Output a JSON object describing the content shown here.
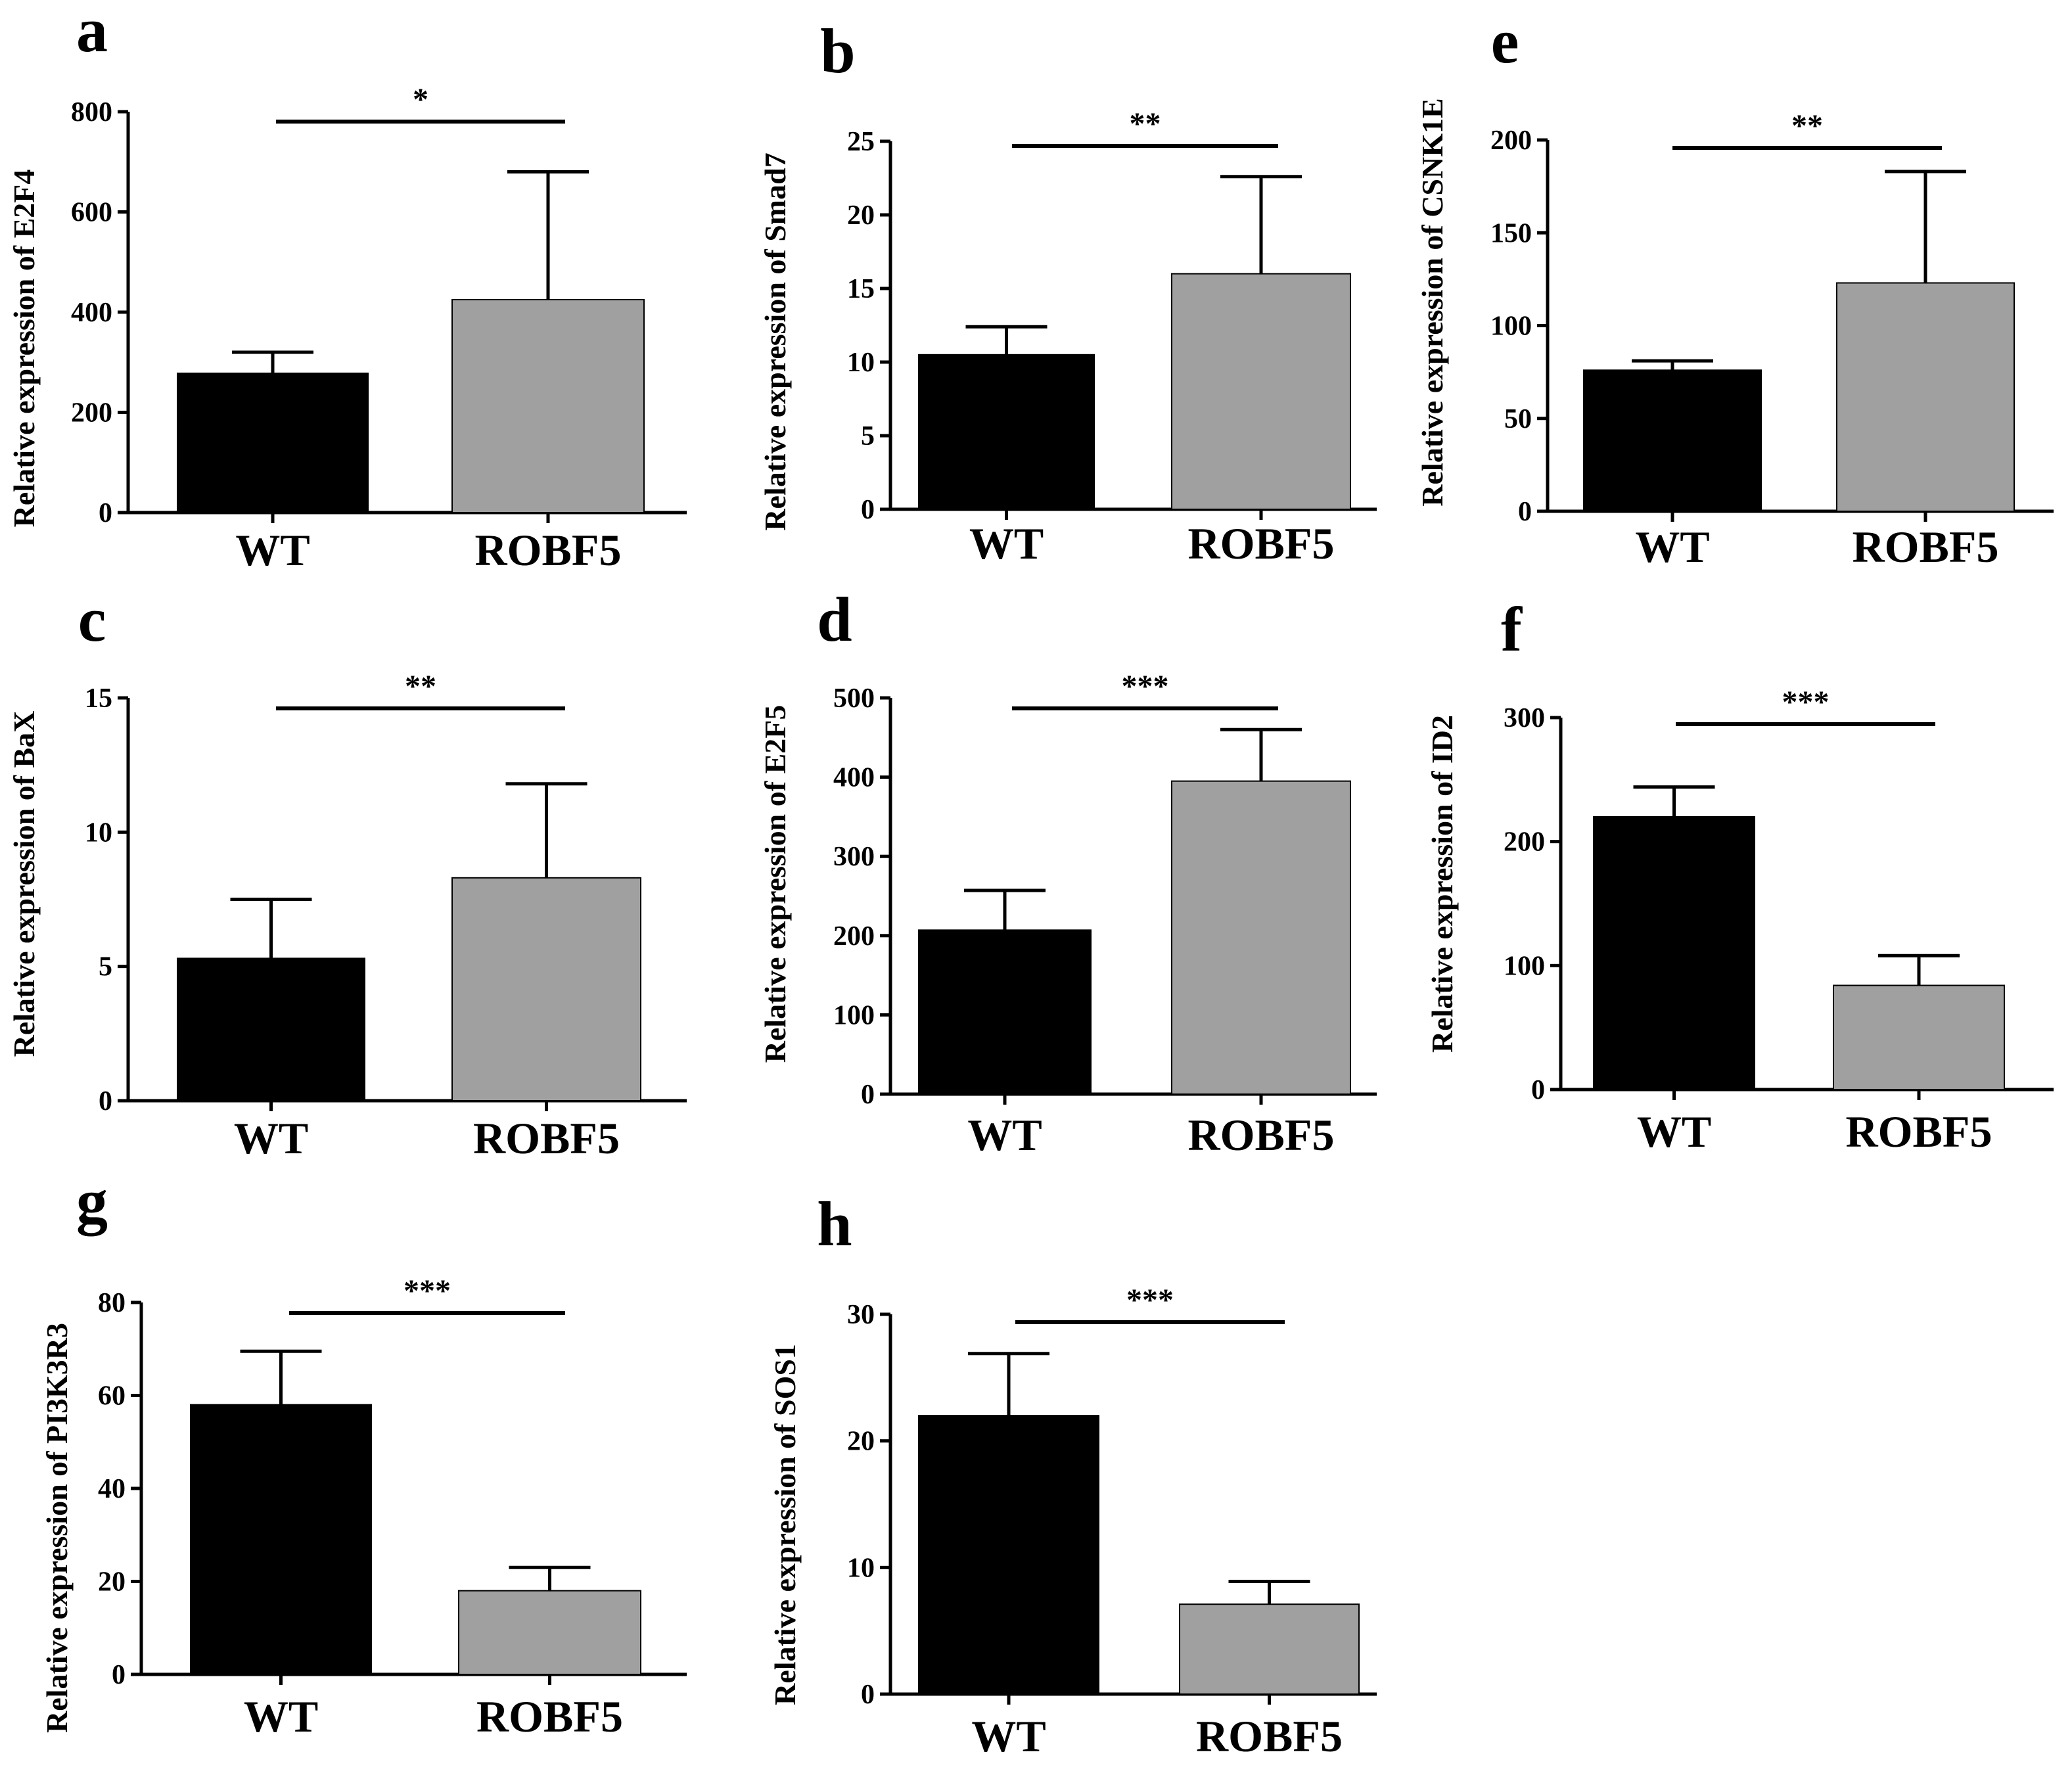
{
  "chart_data": [
    {
      "panel": "a",
      "type": "bar",
      "ylabel": "Relative expression of E2F4",
      "categories": [
        "WT",
        "ROBF5"
      ],
      "values": [
        278,
        425
      ],
      "errors": [
        42,
        255
      ],
      "colors": [
        "#000000",
        "#a0a0a0"
      ],
      "ylim": [
        0,
        800
      ],
      "yticks": [
        0,
        200,
        400,
        600,
        800
      ],
      "significance": "*"
    },
    {
      "panel": "b",
      "type": "bar",
      "ylabel": "Relative expression of Smad7",
      "categories": [
        "WT",
        "ROBF5"
      ],
      "values": [
        10.5,
        16
      ],
      "errors": [
        1.9,
        6.6
      ],
      "colors": [
        "#000000",
        "#a0a0a0"
      ],
      "ylim": [
        0,
        25
      ],
      "yticks": [
        0,
        5,
        10,
        15,
        20,
        25
      ],
      "significance": "**"
    },
    {
      "panel": "e",
      "type": "bar",
      "ylabel": "Relative expression of  CSNK1E",
      "categories": [
        "WT",
        "ROBF5"
      ],
      "values": [
        76,
        123
      ],
      "errors": [
        5,
        60
      ],
      "colors": [
        "#000000",
        "#a0a0a0"
      ],
      "ylim": [
        0,
        200
      ],
      "yticks": [
        0,
        50,
        100,
        150,
        200
      ],
      "significance": "**"
    },
    {
      "panel": "c",
      "type": "bar",
      "ylabel": "Relative expression of  BaX",
      "categories": [
        "WT",
        "ROBF5"
      ],
      "values": [
        5.3,
        8.3
      ],
      "errors": [
        2.2,
        3.5
      ],
      "colors": [
        "#000000",
        "#a0a0a0"
      ],
      "ylim": [
        0,
        15
      ],
      "yticks": [
        0,
        5,
        10,
        15
      ],
      "significance": "**"
    },
    {
      "panel": "d",
      "type": "bar",
      "ylabel": "Relative expression of E2F5",
      "categories": [
        "WT",
        "ROBF5"
      ],
      "values": [
        207,
        395
      ],
      "errors": [
        50,
        65
      ],
      "colors": [
        "#000000",
        "#a0a0a0"
      ],
      "ylim": [
        0,
        500
      ],
      "yticks": [
        0,
        100,
        200,
        300,
        400,
        500
      ],
      "significance": "***"
    },
    {
      "panel": "f",
      "type": "bar",
      "ylabel": "Relative expression of ID2",
      "categories": [
        "WT",
        "ROBF5"
      ],
      "values": [
        220,
        84
      ],
      "errors": [
        24,
        24
      ],
      "colors": [
        "#000000",
        "#a0a0a0"
      ],
      "ylim": [
        0,
        300
      ],
      "yticks": [
        0,
        100,
        200,
        300
      ],
      "significance": "***"
    },
    {
      "panel": "g",
      "type": "bar",
      "ylabel": "Relative expression of PI3K3R3",
      "categories": [
        "WT",
        "ROBF5"
      ],
      "values": [
        58,
        18
      ],
      "errors": [
        11.5,
        5
      ],
      "colors": [
        "#000000",
        "#a0a0a0"
      ],
      "ylim": [
        0,
        80
      ],
      "yticks": [
        0,
        20,
        40,
        60,
        80
      ],
      "significance": "***"
    },
    {
      "panel": "h",
      "type": "bar",
      "ylabel": "Relative expression of  SOS1",
      "categories": [
        "WT",
        "ROBF5"
      ],
      "values": [
        22,
        7.1
      ],
      "errors": [
        4.9,
        1.8
      ],
      "colors": [
        "#000000",
        "#a0a0a0"
      ],
      "ylim": [
        0,
        30
      ],
      "yticks": [
        0,
        10,
        20,
        30
      ],
      "significance": "***"
    }
  ]
}
